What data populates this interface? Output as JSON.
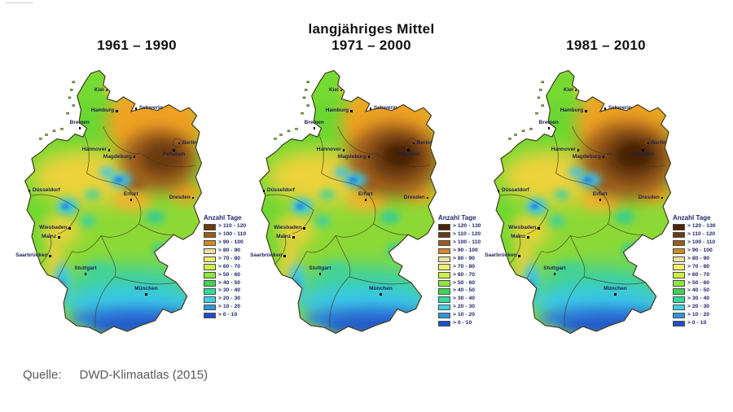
{
  "figure": {
    "supertitle": "langjähriges Mittel"
  },
  "panels": [
    {
      "title": "1961 – 1990",
      "legend": {
        "title": "Anzahl Tage",
        "entries": [
          {
            "label": "> 110 - 120",
            "color": "#6b3a10"
          },
          {
            "label": "> 100 - 110",
            "color": "#9c5c1a"
          },
          {
            "label": "> 90 - 100",
            "color": "#d28a20"
          },
          {
            "label": "> 80 - 90",
            "color": "#efe0a0"
          },
          {
            "label": "> 70 - 80",
            "color": "#f0ee6a"
          },
          {
            "label": "> 60 - 70",
            "color": "#cdef46"
          },
          {
            "label": "> 50 - 60",
            "color": "#8ce63e"
          },
          {
            "label": "> 40 - 50",
            "color": "#3ed455"
          },
          {
            "label": "> 30 - 40",
            "color": "#2edc9e"
          },
          {
            "label": "> 20 - 30",
            "color": "#3cd2e8"
          },
          {
            "label": "> 10 - 20",
            "color": "#2e96dc"
          },
          {
            "label": "> 0 - 10",
            "color": "#1e4fc8"
          }
        ]
      }
    },
    {
      "title": "1971 – 2000",
      "legend": {
        "title": "Anzahl Tage",
        "entries": [
          {
            "label": "> 120 - 130",
            "color": "#4a2404"
          },
          {
            "label": "> 110 - 120",
            "color": "#6b3a10"
          },
          {
            "label": "> 100 - 110",
            "color": "#9c5c1a"
          },
          {
            "label": "> 90 - 100",
            "color": "#d28a20"
          },
          {
            "label": "> 80 - 90",
            "color": "#efe0a0"
          },
          {
            "label": "> 70 - 80",
            "color": "#f0ee6a"
          },
          {
            "label": "> 60 - 70",
            "color": "#cdef46"
          },
          {
            "label": "> 50 - 60",
            "color": "#8ce63e"
          },
          {
            "label": "> 40 - 50",
            "color": "#3ed455"
          },
          {
            "label": "> 30 - 40",
            "color": "#2edc9e"
          },
          {
            "label": "> 20 - 30",
            "color": "#3cd2e8"
          },
          {
            "label": "> 10 - 20",
            "color": "#2e96dc"
          },
          {
            "label": "> 0 - 10",
            "color": "#1e4fc8"
          }
        ]
      }
    },
    {
      "title": "1981 – 2010",
      "legend": {
        "title": "Anzahl Tage",
        "entries": [
          {
            "label": "> 120 - 130",
            "color": "#4a2404"
          },
          {
            "label": "> 110 - 120",
            "color": "#6b3a10"
          },
          {
            "label": "> 100 - 110",
            "color": "#9c5c1a"
          },
          {
            "label": "> 90 - 100",
            "color": "#d28a20"
          },
          {
            "label": "> 80 - 90",
            "color": "#efe0a0"
          },
          {
            "label": "> 70 - 80",
            "color": "#f0ee6a"
          },
          {
            "label": "> 60 - 70",
            "color": "#cdef46"
          },
          {
            "label": "> 50 - 60",
            "color": "#8ce63e"
          },
          {
            "label": "> 40 - 50",
            "color": "#3ed455"
          },
          {
            "label": "> 30 - 40",
            "color": "#2edc9e"
          },
          {
            "label": "> 20 - 30",
            "color": "#3cd2e8"
          },
          {
            "label": "> 10 - 20",
            "color": "#2e96dc"
          },
          {
            "label": "> 0 - 10",
            "color": "#1e4fc8"
          }
        ]
      }
    }
  ],
  "cities": [
    "Kiel",
    "Hamburg",
    "Schwerin",
    "Bremen",
    "Hannover",
    "Berlin",
    "Potsdam",
    "Magdeburg",
    "Düsseldorf",
    "Erfurt",
    "Dresden",
    "Wiesbaden",
    "Mainz",
    "Saarbrücken",
    "Stuttgart",
    "München"
  ],
  "source": {
    "label": "Quelle:",
    "value": "DWD-Klimaatlas (2015)"
  }
}
